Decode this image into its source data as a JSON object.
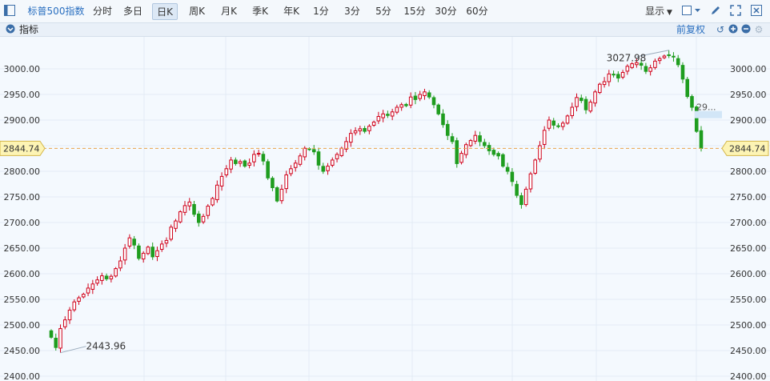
{
  "toolbar": {
    "title": "标普500指数",
    "periods": [
      "分时",
      "多日",
      "日K",
      "周K",
      "月K",
      "季K",
      "年K",
      "1分",
      "3分",
      "5分",
      "15分",
      "30分",
      "60分"
    ],
    "active_period": "日K",
    "display_label": "显示",
    "icons": [
      "sidebar-toggle-icon",
      "square-checkbox-icon",
      "pen-icon",
      "expand-icon",
      "close-icon"
    ]
  },
  "subbar": {
    "indicator_label": "指标",
    "adjust_label": "前复权",
    "icons": [
      "collapse-icon",
      "undo-icon",
      "plus-circle-icon",
      "minus-circle-icon",
      "gear-icon"
    ]
  },
  "chart_data": {
    "type": "candlestick",
    "y_ticks": [
      "3000.00",
      "2950.00",
      "2900.00",
      "2850.00",
      "2800.00",
      "2750.00",
      "2700.00",
      "2650.00",
      "2600.00",
      "2550.00",
      "2500.00",
      "2450.00",
      "2400.00"
    ],
    "ylim": [
      2400,
      3030
    ],
    "current_price_label": "2844.74",
    "current_price": 2844.74,
    "high_annotation": "3027.98",
    "low_annotation": "2443.96",
    "right_truncated_label": "29...",
    "colors": {
      "up": "#d0021b",
      "down": "#1f9d1f",
      "grid": "#e3ecf5",
      "priceline": "#e8a44a",
      "pricebox": "#fdf4b4"
    },
    "closes": [
      2476,
      2456,
      2493,
      2510,
      2529,
      2545,
      2553,
      2560,
      2572,
      2580,
      2588,
      2596,
      2590,
      2595,
      2610,
      2625,
      2650,
      2670,
      2656,
      2630,
      2640,
      2652,
      2633,
      2645,
      2658,
      2665,
      2691,
      2703,
      2721,
      2733,
      2740,
      2716,
      2700,
      2712,
      2732,
      2747,
      2773,
      2790,
      2805,
      2822,
      2815,
      2819,
      2810,
      2816,
      2833,
      2835,
      2820,
      2787,
      2768,
      2742,
      2765,
      2793,
      2805,
      2816,
      2830,
      2845,
      2843,
      2838,
      2812,
      2800,
      2810,
      2822,
      2833,
      2845,
      2858,
      2874,
      2879,
      2883,
      2878,
      2888,
      2896,
      2907,
      2912,
      2909,
      2916,
      2925,
      2930,
      2928,
      2945,
      2940,
      2950,
      2955,
      2945,
      2930,
      2912,
      2891,
      2870,
      2858,
      2815,
      2835,
      2852,
      2860,
      2870,
      2858,
      2850,
      2840,
      2833,
      2830,
      2810,
      2800,
      2780,
      2753,
      2735,
      2765,
      2795,
      2822,
      2850,
      2880,
      2900,
      2890,
      2888,
      2894,
      2908,
      2925,
      2944,
      2938,
      2920,
      2935,
      2955,
      2970,
      2975,
      2990,
      2988,
      2982,
      2993,
      3005,
      3010,
      3012,
      3007,
      2995,
      3002,
      3015,
      3020,
      3025,
      3027,
      3023,
      3008,
      2980,
      2946,
      2925,
      2878,
      2844.74
    ]
  }
}
